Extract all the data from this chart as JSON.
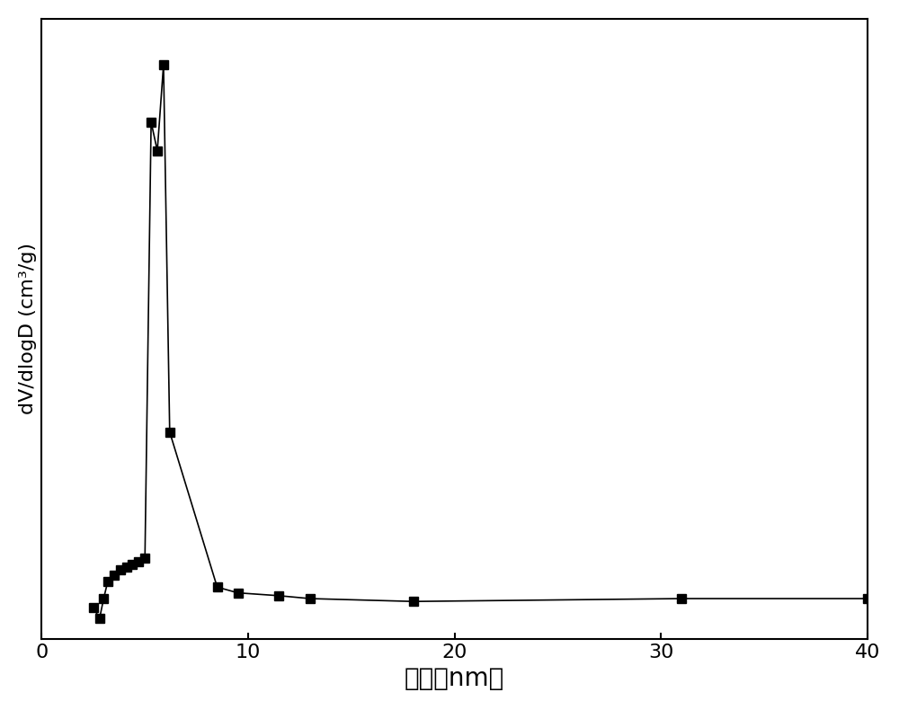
{
  "x": [
    2.5,
    2.8,
    3.0,
    3.2,
    3.5,
    3.8,
    4.1,
    4.4,
    4.7,
    5.0,
    5.3,
    5.6,
    5.9,
    6.2,
    8.5,
    9.5,
    11.5,
    13.0,
    18.0,
    31.0,
    40.0
  ],
  "y": [
    0.055,
    0.035,
    0.07,
    0.1,
    0.11,
    0.12,
    0.125,
    0.13,
    0.135,
    0.14,
    0.9,
    0.85,
    1.0,
    0.36,
    0.09,
    0.08,
    0.075,
    0.07,
    0.065,
    0.07,
    0.07
  ],
  "xlabel": "孔径（nm）",
  "ylabel": "dV/dlogD (cm³/g)",
  "xlim": [
    0,
    40
  ],
  "ylim_min": 0,
  "xticks": [
    0,
    10,
    20,
    30,
    40
  ],
  "background_color": "#ffffff",
  "line_color": "#000000",
  "marker_color": "#000000",
  "marker": "s",
  "markersize": 7,
  "linewidth": 1.2,
  "xlabel_fontsize": 20,
  "ylabel_fontsize": 16,
  "tick_fontsize": 16,
  "fig_width": 10.0,
  "fig_height": 7.9,
  "spine_linewidth": 1.5
}
